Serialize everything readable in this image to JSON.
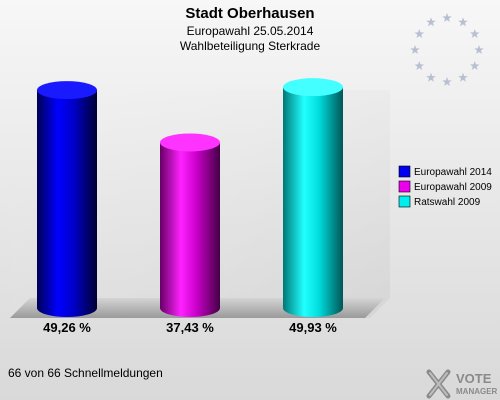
{
  "chart_data": {
    "type": "bar",
    "title": "Stadt Oberhausen",
    "subtitle": "Europawahl 25.05.2014",
    "subtitle2": "Wahlbeteiligung Sterkrade",
    "categories": [
      "Europawahl 2014",
      "Europawahl 2009",
      "Ratswahl 2009"
    ],
    "values": [
      49.26,
      37.43,
      49.93
    ],
    "value_labels": [
      "49,26 %",
      "37,43 %",
      "49,93 %"
    ],
    "colors": [
      "#0000ee",
      "#ee00ee",
      "#00eeee"
    ],
    "ylim": [
      0,
      52
    ],
    "grid": false,
    "legend": {
      "position": "right",
      "entries": [
        "Europawahl 2014",
        "Europawahl 2009",
        "Ratswahl 2009"
      ]
    }
  },
  "footer": {
    "text": "66 von 66 Schnellmeldungen"
  },
  "logo": {
    "line1": "VOTE",
    "line2": "MANAGER",
    "icon": "eu-stars-icon"
  }
}
